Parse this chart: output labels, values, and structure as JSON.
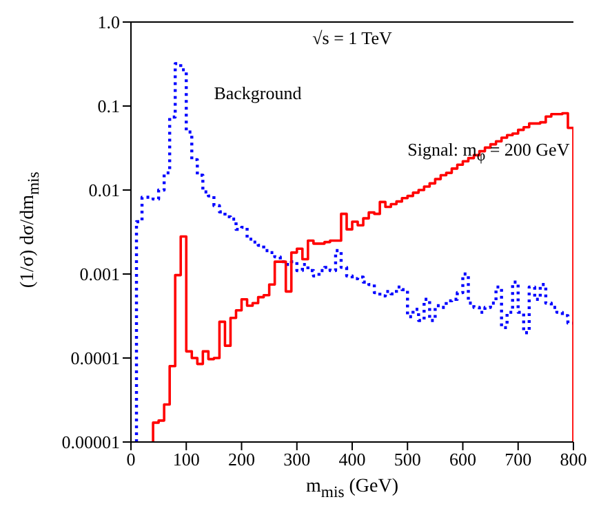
{
  "chart_data": {
    "type": "step",
    "xlabel": "m$_{mis}$ (GeV)",
    "ylabel": "(1/σ) dσ/dm$_{mis}$",
    "annotations": [
      "√s = 1 TeV"
    ],
    "log": "y",
    "legend": false,
    "xlim": [
      0,
      800
    ],
    "xticks": [
      0,
      100,
      200,
      300,
      400,
      500,
      600,
      700,
      800
    ],
    "ylim": [
      1e-05,
      1
    ],
    "yticks": [
      {
        "value": 1e-05,
        "label": "0.00001"
      },
      {
        "value": 0.0001,
        "label": "0.0001"
      },
      {
        "value": 0.001,
        "label": "0.001"
      },
      {
        "value": 0.01,
        "label": "0.01"
      },
      {
        "value": 0.1,
        "label": "0.1"
      },
      {
        "value": 1,
        "label": "1.0"
      }
    ],
    "series": [
      {
        "name": "Background",
        "color": "#0000ff",
        "line_style": "dotted",
        "x": [
          10,
          10,
          20,
          30,
          40,
          50,
          60,
          70,
          80,
          90,
          100,
          110,
          120,
          130,
          140,
          150,
          160,
          170,
          180,
          190,
          200,
          210,
          220,
          230,
          240,
          250,
          260,
          270,
          280,
          290,
          300,
          310,
          320,
          330,
          340,
          350,
          360,
          370,
          380,
          390,
          400,
          410,
          420,
          430,
          440,
          450,
          460,
          470,
          480,
          490,
          500,
          510,
          520,
          530,
          540,
          550,
          560,
          570,
          580,
          590,
          600,
          610,
          620,
          630,
          640,
          650,
          660,
          670,
          680,
          690,
          700,
          710,
          720,
          730,
          740,
          750,
          760,
          770,
          780,
          790,
          800
        ],
        "values": [
          1e-05,
          0.0042,
          0.0082,
          0.0082,
          0.0078,
          0.01,
          0.016,
          0.074,
          0.32,
          0.27,
          0.049,
          0.023,
          0.015,
          0.0095,
          0.0085,
          0.0065,
          0.0055,
          0.0048,
          0.0045,
          0.0034,
          0.0036,
          0.0026,
          0.0024,
          0.0022,
          0.0019,
          0.0018,
          0.0016,
          0.0014,
          0.0013,
          0.0014,
          0.0011,
          0.0013,
          0.0011,
          0.00095,
          0.0011,
          0.0012,
          0.0011,
          0.0019,
          0.0012,
          0.00095,
          0.00088,
          0.00092,
          0.0008,
          0.00075,
          0.0006,
          0.00055,
          0.00062,
          0.00058,
          0.0007,
          0.00065,
          0.00031,
          0.00038,
          0.00028,
          0.0005,
          0.00028,
          0.00042,
          0.0004,
          0.00048,
          0.0005,
          0.0006,
          0.001,
          0.00045,
          0.0004,
          0.00035,
          0.0004,
          0.00045,
          0.0007,
          0.00023,
          0.00035,
          0.0008,
          0.00035,
          0.0002,
          0.0007,
          0.0005,
          0.00075,
          0.00045,
          0.0004,
          0.00035,
          0.00032,
          0.00026,
          0.00026
        ]
      },
      {
        "name": "Signal: m$_{φ}$ = 200 GeV",
        "color": "#ff0000",
        "line_style": "solid",
        "x": [
          40,
          40,
          50,
          60,
          70,
          80,
          90,
          100,
          110,
          120,
          130,
          140,
          150,
          160,
          170,
          180,
          190,
          200,
          210,
          220,
          230,
          240,
          250,
          260,
          270,
          280,
          290,
          300,
          310,
          320,
          330,
          340,
          350,
          360,
          370,
          380,
          390,
          400,
          410,
          420,
          430,
          440,
          450,
          460,
          470,
          480,
          490,
          500,
          510,
          520,
          530,
          540,
          550,
          560,
          570,
          580,
          590,
          600,
          610,
          620,
          630,
          640,
          650,
          660,
          670,
          680,
          690,
          700,
          710,
          720,
          730,
          740,
          750,
          760,
          770,
          780,
          790,
          800
        ],
        "values": [
          1e-05,
          1.7e-05,
          1.8e-05,
          2.8e-05,
          8e-05,
          0.00097,
          0.0028,
          0.00012,
          0.0001,
          8.5e-05,
          0.00012,
          9.7e-05,
          0.0001,
          0.00027,
          0.00014,
          0.0003,
          0.00037,
          0.0005,
          0.00042,
          0.00045,
          0.00053,
          0.00056,
          0.00075,
          0.0014,
          0.0014,
          0.00062,
          0.0018,
          0.002,
          0.0015,
          0.0025,
          0.0023,
          0.0023,
          0.0024,
          0.0025,
          0.0025,
          0.0052,
          0.0034,
          0.0042,
          0.0038,
          0.0046,
          0.0054,
          0.0052,
          0.0072,
          0.0063,
          0.0068,
          0.0073,
          0.008,
          0.0085,
          0.0093,
          0.01,
          0.011,
          0.012,
          0.0135,
          0.015,
          0.016,
          0.018,
          0.02,
          0.022,
          0.024,
          0.026,
          0.029,
          0.032,
          0.035,
          0.038,
          0.042,
          0.045,
          0.047,
          0.052,
          0.056,
          0.062,
          0.062,
          0.064,
          0.075,
          0.08,
          0.08,
          0.082,
          0.055,
          1e-05
        ]
      }
    ]
  }
}
